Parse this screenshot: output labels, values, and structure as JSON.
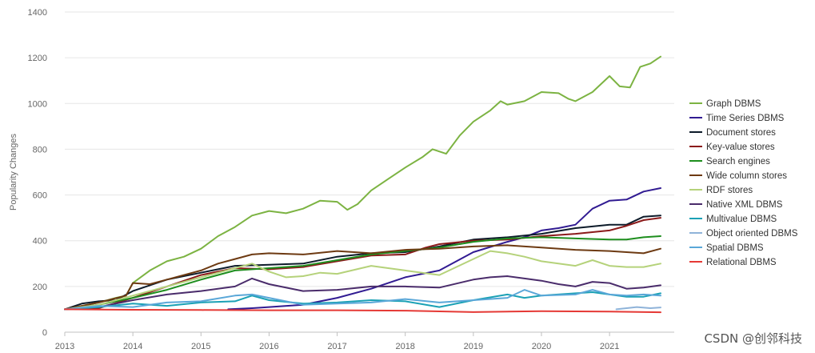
{
  "chart_data": {
    "type": "line",
    "title": "",
    "xlabel": "",
    "ylabel": "Popularity Changes",
    "xlim": [
      2013,
      2021.95
    ],
    "ylim": [
      0,
      1400
    ],
    "x_ticks": [
      "2013",
      "2014",
      "2015",
      "2016",
      "2017",
      "2018",
      "2019",
      "2020",
      "2021"
    ],
    "y_ticks": [
      "0",
      "200",
      "400",
      "600",
      "800",
      "1000",
      "1200",
      "1400"
    ],
    "grid": "horizontal",
    "legend_position": "right",
    "series": [
      {
        "name": "Graph DBMS",
        "color": "#7cb342",
        "points": [
          [
            2013,
            100
          ],
          [
            2013.5,
            130
          ],
          [
            2013.75,
            150
          ],
          [
            2013.9,
            160
          ],
          [
            2014,
            215
          ],
          [
            2014.25,
            270
          ],
          [
            2014.5,
            310
          ],
          [
            2014.75,
            330
          ],
          [
            2015,
            365
          ],
          [
            2015.25,
            420
          ],
          [
            2015.5,
            460
          ],
          [
            2015.75,
            510
          ],
          [
            2016,
            530
          ],
          [
            2016.25,
            520
          ],
          [
            2016.5,
            540
          ],
          [
            2016.75,
            575
          ],
          [
            2017,
            570
          ],
          [
            2017.15,
            535
          ],
          [
            2017.3,
            560
          ],
          [
            2017.5,
            620
          ],
          [
            2017.75,
            670
          ],
          [
            2018,
            720
          ],
          [
            2018.25,
            765
          ],
          [
            2018.4,
            800
          ],
          [
            2018.6,
            780
          ],
          [
            2018.8,
            860
          ],
          [
            2019,
            920
          ],
          [
            2019.25,
            970
          ],
          [
            2019.4,
            1010
          ],
          [
            2019.5,
            995
          ],
          [
            2019.75,
            1010
          ],
          [
            2020,
            1050
          ],
          [
            2020.25,
            1045
          ],
          [
            2020.4,
            1020
          ],
          [
            2020.5,
            1010
          ],
          [
            2020.75,
            1050
          ],
          [
            2021,
            1120
          ],
          [
            2021.15,
            1075
          ],
          [
            2021.3,
            1070
          ],
          [
            2021.45,
            1160
          ],
          [
            2021.6,
            1175
          ],
          [
            2021.75,
            1205
          ]
        ]
      },
      {
        "name": "Time Series DBMS",
        "color": "#311b92",
        "points": [
          [
            2015.4,
            100
          ],
          [
            2015.75,
            105
          ],
          [
            2016,
            110
          ],
          [
            2016.5,
            120
          ],
          [
            2017,
            150
          ],
          [
            2017.5,
            190
          ],
          [
            2018,
            240
          ],
          [
            2018.5,
            270
          ],
          [
            2019,
            350
          ],
          [
            2019.5,
            395
          ],
          [
            2019.75,
            415
          ],
          [
            2020,
            445
          ],
          [
            2020.25,
            455
          ],
          [
            2020.5,
            470
          ],
          [
            2020.75,
            540
          ],
          [
            2021,
            575
          ],
          [
            2021.25,
            580
          ],
          [
            2021.5,
            615
          ],
          [
            2021.75,
            630
          ]
        ]
      },
      {
        "name": "Document stores",
        "color": "#0d1b2a",
        "points": [
          [
            2013,
            100
          ],
          [
            2013.25,
            125
          ],
          [
            2013.5,
            135
          ],
          [
            2013.75,
            140
          ],
          [
            2014,
            180
          ],
          [
            2014.5,
            230
          ],
          [
            2015,
            260
          ],
          [
            2015.25,
            275
          ],
          [
            2015.5,
            290
          ],
          [
            2016,
            295
          ],
          [
            2016.5,
            300
          ],
          [
            2017,
            330
          ],
          [
            2017.5,
            345
          ],
          [
            2018,
            350
          ],
          [
            2018.5,
            375
          ],
          [
            2019,
            405
          ],
          [
            2019.5,
            415
          ],
          [
            2020,
            430
          ],
          [
            2020.5,
            455
          ],
          [
            2021,
            470
          ],
          [
            2021.25,
            470
          ],
          [
            2021.5,
            505
          ],
          [
            2021.75,
            510
          ]
        ]
      },
      {
        "name": "Key-value stores",
        "color": "#8b1a1a",
        "points": [
          [
            2013,
            100
          ],
          [
            2013.5,
            105
          ],
          [
            2014,
            150
          ],
          [
            2014.5,
            200
          ],
          [
            2015,
            250
          ],
          [
            2015.5,
            280
          ],
          [
            2016,
            275
          ],
          [
            2016.5,
            285
          ],
          [
            2017,
            310
          ],
          [
            2017.5,
            335
          ],
          [
            2018,
            340
          ],
          [
            2018.3,
            370
          ],
          [
            2018.5,
            385
          ],
          [
            2019,
            400
          ],
          [
            2019.5,
            405
          ],
          [
            2020,
            420
          ],
          [
            2020.5,
            430
          ],
          [
            2021,
            445
          ],
          [
            2021.25,
            465
          ],
          [
            2021.5,
            490
          ],
          [
            2021.75,
            500
          ]
        ]
      },
      {
        "name": "Search engines",
        "color": "#1e8e1e",
        "points": [
          [
            2013,
            100
          ],
          [
            2013.5,
            120
          ],
          [
            2014,
            150
          ],
          [
            2014.5,
            185
          ],
          [
            2015,
            230
          ],
          [
            2015.5,
            270
          ],
          [
            2016,
            280
          ],
          [
            2016.5,
            290
          ],
          [
            2017,
            315
          ],
          [
            2017.5,
            340
          ],
          [
            2018,
            355
          ],
          [
            2018.5,
            370
          ],
          [
            2019,
            395
          ],
          [
            2019.5,
            410
          ],
          [
            2020,
            415
          ],
          [
            2020.5,
            410
          ],
          [
            2021,
            405
          ],
          [
            2021.25,
            405
          ],
          [
            2021.5,
            415
          ],
          [
            2021.75,
            420
          ]
        ]
      },
      {
        "name": "Wide column stores",
        "color": "#6d3a12",
        "points": [
          [
            2013,
            100
          ],
          [
            2013.5,
            130
          ],
          [
            2013.9,
            160
          ],
          [
            2014,
            215
          ],
          [
            2014.25,
            210
          ],
          [
            2014.5,
            230
          ],
          [
            2015,
            270
          ],
          [
            2015.25,
            300
          ],
          [
            2015.5,
            320
          ],
          [
            2015.75,
            340
          ],
          [
            2016,
            345
          ],
          [
            2016.5,
            340
          ],
          [
            2017,
            355
          ],
          [
            2017.5,
            345
          ],
          [
            2018,
            360
          ],
          [
            2018.5,
            365
          ],
          [
            2019,
            375
          ],
          [
            2019.5,
            380
          ],
          [
            2020,
            370
          ],
          [
            2020.5,
            360
          ],
          [
            2021,
            355
          ],
          [
            2021.25,
            350
          ],
          [
            2021.5,
            345
          ],
          [
            2021.75,
            365
          ]
        ]
      },
      {
        "name": "RDF stores",
        "color": "#b5d27a",
        "points": [
          [
            2013,
            100
          ],
          [
            2013.5,
            120
          ],
          [
            2014,
            160
          ],
          [
            2014.5,
            200
          ],
          [
            2015,
            240
          ],
          [
            2015.5,
            280
          ],
          [
            2015.75,
            300
          ],
          [
            2016,
            265
          ],
          [
            2016.25,
            240
          ],
          [
            2016.5,
            245
          ],
          [
            2016.75,
            260
          ],
          [
            2017,
            255
          ],
          [
            2017.5,
            290
          ],
          [
            2018,
            270
          ],
          [
            2018.5,
            250
          ],
          [
            2019,
            320
          ],
          [
            2019.25,
            355
          ],
          [
            2019.5,
            345
          ],
          [
            2019.75,
            330
          ],
          [
            2020,
            310
          ],
          [
            2020.5,
            290
          ],
          [
            2020.75,
            315
          ],
          [
            2021,
            290
          ],
          [
            2021.25,
            285
          ],
          [
            2021.5,
            285
          ],
          [
            2021.75,
            300
          ]
        ]
      },
      {
        "name": "Native XML DBMS",
        "color": "#4a2c6b",
        "points": [
          [
            2013,
            100
          ],
          [
            2013.5,
            110
          ],
          [
            2014,
            140
          ],
          [
            2014.5,
            165
          ],
          [
            2015,
            180
          ],
          [
            2015.5,
            200
          ],
          [
            2015.75,
            235
          ],
          [
            2016,
            210
          ],
          [
            2016.5,
            180
          ],
          [
            2017,
            185
          ],
          [
            2017.5,
            200
          ],
          [
            2018,
            200
          ],
          [
            2018.5,
            195
          ],
          [
            2019,
            230
          ],
          [
            2019.25,
            240
          ],
          [
            2019.5,
            245
          ],
          [
            2019.75,
            235
          ],
          [
            2020,
            225
          ],
          [
            2020.25,
            210
          ],
          [
            2020.5,
            200
          ],
          [
            2020.75,
            220
          ],
          [
            2021,
            215
          ],
          [
            2021.25,
            190
          ],
          [
            2021.5,
            195
          ],
          [
            2021.75,
            205
          ]
        ]
      },
      {
        "name": "Multivalue DBMS",
        "color": "#1ba1b5",
        "points": [
          [
            2013,
            100
          ],
          [
            2013.5,
            110
          ],
          [
            2014,
            125
          ],
          [
            2014.5,
            115
          ],
          [
            2015,
            130
          ],
          [
            2015.5,
            135
          ],
          [
            2015.75,
            160
          ],
          [
            2016,
            140
          ],
          [
            2016.5,
            125
          ],
          [
            2017,
            130
          ],
          [
            2017.5,
            140
          ],
          [
            2018,
            135
          ],
          [
            2018.5,
            110
          ],
          [
            2019,
            140
          ],
          [
            2019.5,
            165
          ],
          [
            2019.75,
            150
          ],
          [
            2020,
            160
          ],
          [
            2020.5,
            170
          ],
          [
            2020.75,
            175
          ],
          [
            2021,
            165
          ],
          [
            2021.25,
            155
          ],
          [
            2021.5,
            155
          ],
          [
            2021.75,
            170
          ]
        ]
      },
      {
        "name": "Object oriented DBMS",
        "color": "#8fb3d9",
        "points": [
          [
            2021.1,
            100
          ],
          [
            2021.4,
            110
          ],
          [
            2021.6,
            105
          ],
          [
            2021.75,
            108
          ]
        ]
      },
      {
        "name": "Spatial DBMS",
        "color": "#5aa7d8",
        "points": [
          [
            2013,
            100
          ],
          [
            2013.5,
            115
          ],
          [
            2014,
            110
          ],
          [
            2014.5,
            130
          ],
          [
            2015,
            135
          ],
          [
            2015.5,
            160
          ],
          [
            2015.75,
            165
          ],
          [
            2016,
            150
          ],
          [
            2016.5,
            120
          ],
          [
            2017,
            125
          ],
          [
            2017.5,
            130
          ],
          [
            2018,
            145
          ],
          [
            2018.5,
            130
          ],
          [
            2019,
            140
          ],
          [
            2019.5,
            150
          ],
          [
            2019.75,
            185
          ],
          [
            2020,
            160
          ],
          [
            2020.5,
            165
          ],
          [
            2020.75,
            185
          ],
          [
            2021,
            165
          ],
          [
            2021.25,
            160
          ],
          [
            2021.5,
            165
          ],
          [
            2021.75,
            160
          ]
        ]
      },
      {
        "name": "Relational DBMS",
        "color": "#e53935",
        "points": [
          [
            2013,
            100
          ],
          [
            2014,
            98
          ],
          [
            2015,
            97
          ],
          [
            2016,
            96
          ],
          [
            2017,
            96
          ],
          [
            2018,
            94
          ],
          [
            2019,
            88
          ],
          [
            2020,
            92
          ],
          [
            2021,
            90
          ],
          [
            2021.75,
            87
          ]
        ]
      }
    ]
  },
  "watermark": "CSDN @创邻科技"
}
